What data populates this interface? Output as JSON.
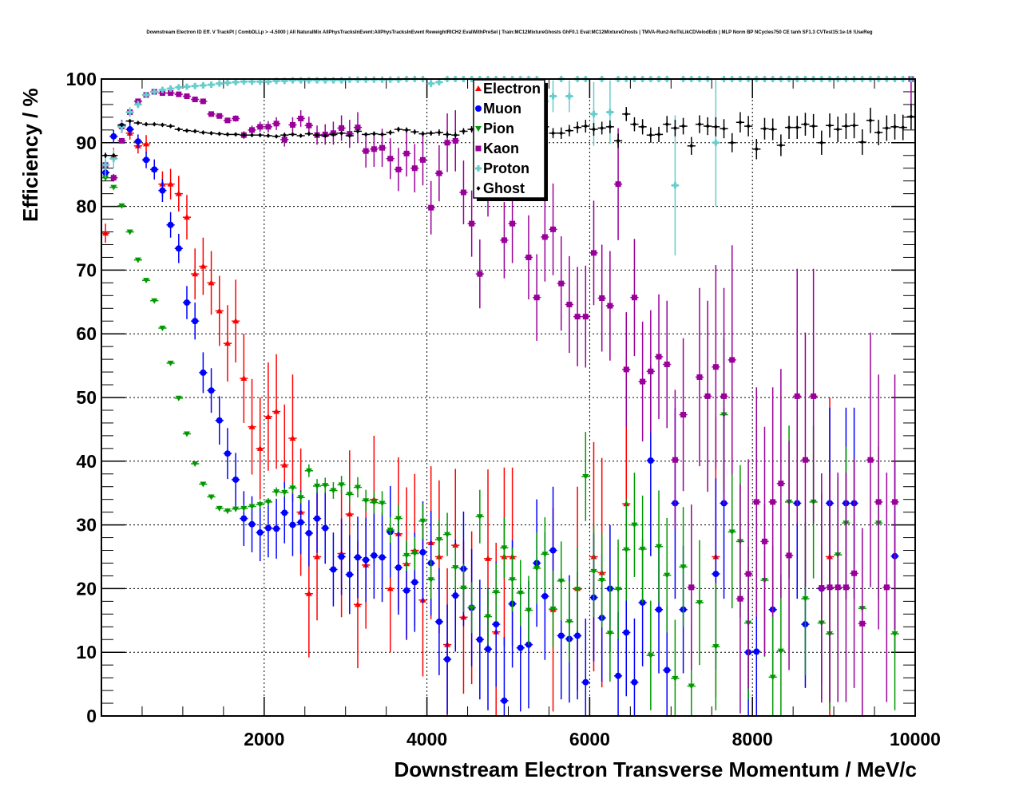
{
  "chart_data": {
    "type": "scatter",
    "title": "Downstream Electron ID Eff. V TrackPt | CombDLLp > -4.5000 | All NaturalMix AllPhysTracksInEvent:AllPhysTracksInEvent ReweightRICH2 EvalWithPreSel | Train:MC12MixtureGhosts GhF0.1 Eval:MC12MixtureGhosts | TMVA-Run2-NoTkLikCDVelodEdx | MLP Norm BP NCycles750 CE tanh SF1.3 CVTest15:1e-16 !UseReg",
    "xlabel": "Downstream Electron Transverse Momentum / MeV/c",
    "ylabel": "Efficiency / %",
    "xlim": [
      0,
      10000
    ],
    "ylim": [
      0,
      100
    ],
    "xticks": [
      2000,
      4000,
      6000,
      8000,
      10000
    ],
    "yticks": [
      0,
      10,
      20,
      30,
      40,
      50,
      60,
      70,
      80,
      90,
      100
    ],
    "grid": true,
    "legend_position": "top-center",
    "bin_width": 100,
    "x_start": 50,
    "series": [
      {
        "name": "Electron",
        "color": "#ff0000",
        "marker": "triangle-up",
        "values": [
          75.8,
          88,
          92.5,
          91.5,
          89.5,
          89.8,
          85.8,
          83.5,
          83.5,
          82,
          78.3,
          69.4,
          70.6,
          68,
          63.6,
          58.5,
          62,
          53,
          45.4,
          42,
          47,
          47.8,
          39.4,
          43.6,
          32,
          19.2,
          25,
          null,
          null,
          25.5,
          31.7,
          17.5,
          23.7,
          34,
          null,
          20,
          28.6,
          23.9,
          26,
          18.2,
          27.2,
          25,
          11.2,
          26.8,
          15.5,
          17,
          null,
          24.7,
          13.2,
          25,
          25,
          null,
          null,
          null,
          null,
          16.7,
          null,
          null,
          20,
          null,
          25,
          22.5,
          null,
          null,
          33.3,
          null,
          null,
          null,
          null,
          null,
          null,
          null,
          null,
          null,
          null,
          25,
          null,
          null,
          null,
          null,
          null,
          null,
          null,
          null,
          null,
          null,
          null,
          null,
          null,
          25,
          null,
          null,
          null,
          null,
          null,
          null,
          null,
          null,
          null,
          null
        ],
        "errors": [
          1.5,
          1.2,
          1,
          1,
          1.2,
          1.4,
          1.6,
          2,
          2.4,
          2.8,
          3.5,
          4,
          4.5,
          5,
          5.5,
          6,
          6.5,
          7,
          7.5,
          8,
          8.5,
          9,
          9.5,
          10,
          10,
          10,
          10,
          null,
          null,
          10,
          10,
          10,
          10,
          10,
          null,
          10,
          12,
          12,
          12,
          12,
          12,
          12,
          12,
          12,
          12,
          12,
          null,
          14,
          14,
          14,
          14,
          null,
          null,
          null,
          null,
          16,
          null,
          null,
          16,
          null,
          18,
          18,
          null,
          null,
          20,
          null,
          null,
          null,
          null,
          null,
          null,
          null,
          null,
          null,
          null,
          22,
          null,
          null,
          null,
          null,
          null,
          null,
          null,
          null,
          null,
          null,
          null,
          null,
          null,
          25,
          null,
          null,
          null,
          null,
          null,
          null,
          null,
          null,
          null,
          null
        ]
      },
      {
        "name": "Muon",
        "color": "#0000ff",
        "marker": "circle",
        "values": [
          85.3,
          91,
          92.6,
          92.1,
          90.2,
          87.3,
          85.8,
          82.5,
          77.1,
          73.4,
          64.9,
          62,
          53.9,
          51.1,
          46.4,
          41.2,
          37.1,
          31,
          30.1,
          28.8,
          29.5,
          29.4,
          31.9,
          30,
          30.4,
          28.7,
          31,
          29.5,
          23,
          25,
          22.2,
          24.9,
          24.5,
          25.2,
          24.9,
          28.9,
          23.3,
          19.7,
          21,
          25.7,
          24,
          14.8,
          8.9,
          18.9,
          23.1,
          17,
          12,
          10.5,
          14.4,
          2.4,
          17.6,
          10.7,
          11.2,
          24,
          18.8,
          26,
          12.6,
          12.1,
          12.6,
          5.3,
          18.6,
          15.4,
          20,
          6.3,
          13.1,
          5.3,
          17.8,
          40.1,
          16.7,
          7.2,
          33.4,
          16.7,
          null,
          null,
          null,
          22.3,
          33.4,
          null,
          null,
          10,
          10.1,
          null,
          16.7,
          null,
          null,
          33.4,
          14.4,
          null,
          20,
          33.4,
          null,
          33.4,
          33.4,
          null,
          null,
          null,
          null,
          25.1,
          null,
          null
        ],
        "errors": [
          1.2,
          1,
          1,
          1,
          1.1,
          1.3,
          1.5,
          1.8,
          2,
          2.3,
          2.6,
          2.9,
          3.2,
          3.5,
          3.8,
          4,
          4.2,
          4.3,
          4.4,
          4.5,
          4.6,
          4.7,
          4.8,
          4.9,
          5,
          5.2,
          5.4,
          5.6,
          5.8,
          6,
          6.2,
          6.4,
          6.6,
          6.8,
          7,
          7.2,
          7.4,
          7.6,
          7.8,
          8,
          8.2,
          8.4,
          8.6,
          8.8,
          9,
          9.2,
          9.4,
          9.6,
          9.8,
          10,
          10,
          10,
          10,
          10,
          10,
          10,
          10,
          10,
          10,
          10,
          10,
          10,
          10,
          10,
          10,
          10,
          10,
          15,
          10,
          10,
          15,
          10,
          null,
          null,
          null,
          15,
          15,
          null,
          null,
          10,
          10,
          null,
          10,
          null,
          null,
          15,
          10,
          null,
          15,
          15,
          null,
          15,
          15,
          null,
          null,
          null,
          null,
          15,
          null,
          null
        ]
      },
      {
        "name": "Pion",
        "color": "#009900",
        "marker": "triangle-down",
        "values": [
          84.5,
          83,
          80.1,
          76,
          71.6,
          68.4,
          65.2,
          60.9,
          55.4,
          49.9,
          44.3,
          39.6,
          36.4,
          34.4,
          32.6,
          32.2,
          32.5,
          32.6,
          32.9,
          33.2,
          33.6,
          35.2,
          35.1,
          35.8,
          34.3,
          38.5,
          36.1,
          36.2,
          35.4,
          36.3,
          34.8,
          35.9,
          33.8,
          33.5,
          33.4,
          29.2,
          31,
          25.2,
          25.5,
          30.6,
          21.4,
          27.7,
          28.5,
          23.3,
          20.1,
          17,
          31.3,
          15.6,
          19.4,
          26.4,
          21.4,
          19.3,
          16.6,
          23.2,
          25.4,
          16.8,
          21.2,
          14.8,
          19.9,
          37.6,
          22.7,
          21.3,
          13,
          19.9,
          26.1,
          30,
          26.2,
          9.5,
          26.6,
          22.1,
          5.9,
          23.4,
          4.7,
          17.8,
          null,
          10.9,
          47.3,
          28.9,
          27.4,
          14.6,
          33.6,
          21.3,
          6.1,
          10.2,
          33.6,
          null,
          18.4,
          33.6,
          14.6,
          12.9,
          25.3,
          30.3,
          null,
          16.9,
          null,
          30.3,
          null,
          12.9,
          null,
          null
        ],
        "errors": [
          0.3,
          0.3,
          0.3,
          0.3,
          0.3,
          0.3,
          0.3,
          0.3,
          0.3,
          0.3,
          0.3,
          0.3,
          0.3,
          0.3,
          0.4,
          0.4,
          0.4,
          0.5,
          0.5,
          0.6,
          0.6,
          0.7,
          0.7,
          0.8,
          0.9,
          1,
          1.1,
          1.2,
          1.3,
          1.4,
          1.5,
          1.6,
          1.7,
          1.8,
          1.9,
          2,
          2.2,
          2.4,
          2.6,
          2.8,
          3,
          3.2,
          3.4,
          3.6,
          3.8,
          4,
          4.2,
          4.4,
          4.6,
          4.8,
          5,
          5.2,
          5.4,
          5.6,
          5.8,
          6,
          6.2,
          6.4,
          6.6,
          7,
          7.2,
          7.4,
          7.6,
          7.8,
          8,
          8.2,
          8.4,
          8.6,
          8.8,
          9,
          9.2,
          9.4,
          9.6,
          9.8,
          null,
          10,
          12,
          12,
          12,
          12,
          12,
          12,
          12,
          12,
          12,
          null,
          12,
          12,
          12,
          12,
          12,
          12,
          null,
          12,
          null,
          12,
          null,
          12,
          null,
          null
        ]
      },
      {
        "name": "Kaon",
        "color": "#990099",
        "marker": "square",
        "values": [
          86.5,
          84.5,
          90.3,
          94.8,
          96.5,
          97.5,
          98,
          97.8,
          97.8,
          97.6,
          97.3,
          96.8,
          96.5,
          94.5,
          94.2,
          93.5,
          93.8,
          91.2,
          92,
          92.5,
          92.5,
          93,
          90.5,
          92.8,
          93.8,
          92.7,
          91.2,
          91.3,
          91.5,
          92.3,
          91.4,
          92.4,
          88.7,
          89,
          89.2,
          87.5,
          85.8,
          88.3,
          86,
          87.3,
          79.8,
          85.2,
          90,
          90.3,
          82.2,
          77.3,
          69.4,
          84,
          87.5,
          74.7,
          77.3,
          88,
          72,
          65.7,
          75.2,
          76.4,
          67.9,
          64.6,
          62.7,
          62.7,
          72.7,
          65.6,
          64.4,
          83.5,
          54.4,
          65.7,
          52.5,
          54.1,
          56.4,
          55.2,
          40.2,
          47.3,
          20.2,
          53.2,
          50.2,
          54.8,
          50.2,
          55.9,
          18.4,
          22.3,
          33.6,
          27.4,
          33.6,
          36.5,
          25.2,
          50.2,
          40.2,
          50.2,
          20.1,
          20.2,
          20.2,
          20.2,
          22.4,
          14.5,
          40.2,
          33.6,
          20.2,
          33.6,
          null,
          100
        ],
        "errors": [
          0.8,
          0.6,
          0.4,
          0.3,
          0.3,
          0.2,
          0.2,
          0.2,
          0.2,
          0.2,
          0.2,
          0.2,
          0.3,
          0.3,
          0.4,
          0.4,
          0.5,
          0.6,
          0.7,
          0.8,
          0.9,
          1,
          1.1,
          1.2,
          1.3,
          1.4,
          1.5,
          1.6,
          1.8,
          2,
          2.2,
          2.4,
          2.6,
          2.8,
          3,
          3.2,
          3.4,
          3.6,
          3.8,
          4,
          4.2,
          4.4,
          4.6,
          4.8,
          5,
          5.2,
          5.4,
          5.6,
          5.8,
          6,
          6.2,
          6.4,
          6.6,
          6.8,
          7,
          7.2,
          7.4,
          7.6,
          7.8,
          8,
          8.2,
          8.4,
          8.6,
          8.8,
          9,
          9.2,
          9.4,
          9.6,
          9.8,
          10,
          11,
          12,
          13,
          14,
          15,
          16,
          17,
          18,
          18,
          18,
          18,
          18,
          18,
          18,
          18,
          20,
          20,
          20,
          18,
          18,
          18,
          18,
          18,
          15,
          20,
          20,
          18,
          20,
          null,
          5
        ]
      },
      {
        "name": "Proton",
        "color": "#66cccc",
        "marker": "cross",
        "values": [
          86.5,
          87.5,
          92.5,
          94.8,
          96,
          97.5,
          98,
          98.3,
          98.5,
          98.7,
          98.8,
          98.9,
          99,
          99.1,
          99.3,
          99.4,
          99.5,
          99.6,
          99.6,
          99.6,
          99.6,
          99.7,
          99.7,
          99.8,
          99.8,
          99.8,
          99.8,
          99.8,
          99.8,
          99.8,
          99.9,
          99.9,
          99.9,
          99.9,
          99.9,
          99.9,
          99.9,
          100,
          100,
          100,
          99.3,
          99.5,
          100,
          100,
          100,
          100,
          100,
          100,
          100,
          100,
          100,
          100,
          100,
          100,
          96.5,
          97.3,
          100,
          97.3,
          100,
          100,
          94.5,
          100,
          94.8,
          100,
          100,
          100,
          100,
          100,
          100,
          100,
          83.3,
          100,
          100,
          100,
          100,
          90,
          100,
          100,
          100,
          100,
          100,
          100,
          100,
          100,
          100,
          100,
          100,
          100,
          100,
          100,
          100,
          100,
          100,
          100,
          100,
          100,
          100,
          100,
          100,
          100
        ],
        "errors": [
          2,
          1.5,
          1,
          0.8,
          0.6,
          0.4,
          0.3,
          0.3,
          0.3,
          0.2,
          0.2,
          0.2,
          0.2,
          0.2,
          0.2,
          0.2,
          0.2,
          0.2,
          0.2,
          0.2,
          0.2,
          0.2,
          0.2,
          0.2,
          0.2,
          0.2,
          0.2,
          0.2,
          0.2,
          0.2,
          0.2,
          0.2,
          0.2,
          0.2,
          0.2,
          0.2,
          0.2,
          0,
          0,
          0,
          0.6,
          0.5,
          0,
          0,
          0,
          0,
          0,
          0,
          0,
          0,
          0,
          0,
          0,
          0,
          3,
          2.5,
          0,
          2.5,
          0,
          0,
          5,
          0,
          5,
          0,
          0,
          0,
          0,
          0,
          0,
          0,
          11,
          0,
          0,
          0,
          0,
          10,
          0,
          0,
          0,
          0,
          0,
          0,
          0,
          0,
          0,
          0,
          0,
          0,
          0,
          0,
          0,
          0,
          0,
          0,
          0,
          0,
          0,
          0,
          0,
          0
        ]
      },
      {
        "name": "Ghost",
        "color": "#000000",
        "marker": "diamond",
        "values": [
          88,
          88,
          92.8,
          93.4,
          93.1,
          92.9,
          92.9,
          92.8,
          92.6,
          92.1,
          91.9,
          91.8,
          91.6,
          91.5,
          91.4,
          91.3,
          91.3,
          91.2,
          91.2,
          91.2,
          91.1,
          91,
          91.2,
          91.3,
          91.1,
          91.4,
          91.2,
          91.1,
          91.3,
          91.5,
          91.1,
          91.8,
          91.3,
          91.4,
          91.3,
          91.6,
          92.1,
          92,
          91.7,
          91.4,
          91.5,
          91.6,
          91.3,
          91.2,
          91.8,
          92.1,
          93,
          92.3,
          91.8,
          92.2,
          91.7,
          91.8,
          92,
          91.6,
          92.5,
          91.5,
          91.5,
          91.9,
          92.4,
          92.6,
          92.1,
          92.3,
          92.5,
          90.3,
          94.5,
          92.9,
          92.5,
          91.2,
          91.3,
          92.9,
          92.3,
          92.6,
          89.5,
          92.9,
          92.6,
          92.5,
          92.2,
          90,
          93.2,
          92.6,
          89,
          92.2,
          92.1,
          89.6,
          92.4,
          92.4,
          92.9,
          92.6,
          90,
          92.7,
          92.1,
          92.6,
          92.7,
          90.1,
          93.5,
          91.6,
          92.3,
          92.5,
          92.4,
          94.1
        ],
        "errors": [
          0.4,
          0.3,
          0.2,
          0.2,
          0.2,
          0.2,
          0.2,
          0.2,
          0.2,
          0.2,
          0.2,
          0.2,
          0.2,
          0.2,
          0.2,
          0.2,
          0.2,
          0.2,
          0.2,
          0.2,
          0.2,
          0.2,
          0.2,
          0.2,
          0.2,
          0.3,
          0.3,
          0.3,
          0.3,
          0.3,
          0.3,
          0.3,
          0.3,
          0.3,
          0.3,
          0.4,
          0.4,
          0.4,
          0.4,
          0.4,
          0.4,
          0.5,
          0.5,
          0.5,
          0.5,
          0.5,
          0.6,
          0.6,
          0.6,
          0.6,
          0.7,
          0.7,
          0.7,
          0.8,
          0.8,
          0.8,
          0.9,
          0.9,
          0.9,
          1,
          1,
          1,
          1,
          1.1,
          1.1,
          1.1,
          1.2,
          1.2,
          1.2,
          1.3,
          1.3,
          1.3,
          1.4,
          1.4,
          1.4,
          1.5,
          1.5,
          1.5,
          1.6,
          1.6,
          1.6,
          1.7,
          1.7,
          1.7,
          1.8,
          1.8,
          1.8,
          1.9,
          1.9,
          1.9,
          2,
          2,
          2,
          2,
          2,
          2,
          2,
          2,
          2,
          2
        ]
      }
    ]
  }
}
